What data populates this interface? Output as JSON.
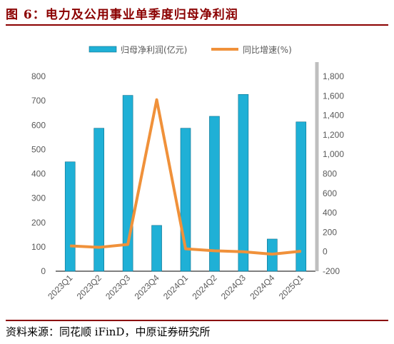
{
  "header": {
    "title": "图 6：电力及公用事业单季度归母净利润"
  },
  "footer": {
    "source": "资料来源：同花顺 iFinD，中原证券研究所"
  },
  "colors": {
    "bar": "#1FB0D6",
    "bar_edge": "#0B6E8C",
    "line": "#F0913A",
    "accent": "#8B0000"
  },
  "chart_data": {
    "type": "bar",
    "title": "",
    "categories": [
      "2023Q1",
      "2023Q2",
      "2023Q3",
      "2023Q4",
      "2024Q1",
      "2024Q2",
      "2024Q3",
      "2024Q4",
      "2025Q1"
    ],
    "series": [
      {
        "name": "归母净利润(亿元)",
        "type": "bar",
        "axis": "left",
        "values": [
          449,
          587,
          722,
          188,
          587,
          636,
          726,
          132,
          613
        ]
      },
      {
        "name": "同比增速(%)",
        "type": "line",
        "axis": "right",
        "values": [
          60,
          45,
          75,
          1560,
          30,
          10,
          0,
          -25,
          5
        ]
      }
    ],
    "y_left": {
      "ylim": [
        0,
        800
      ],
      "ticks": [
        "0",
        "100",
        "200",
        "300",
        "400",
        "500",
        "600",
        "700",
        "800"
      ]
    },
    "y_right": {
      "ylim": [
        -200,
        1800
      ],
      "ticks": [
        "-200",
        "0",
        "200",
        "400",
        "600",
        "800",
        "1,000",
        "1,200",
        "1,400",
        "1,600",
        "1,800"
      ]
    },
    "grid": false,
    "legend": "top-center"
  }
}
